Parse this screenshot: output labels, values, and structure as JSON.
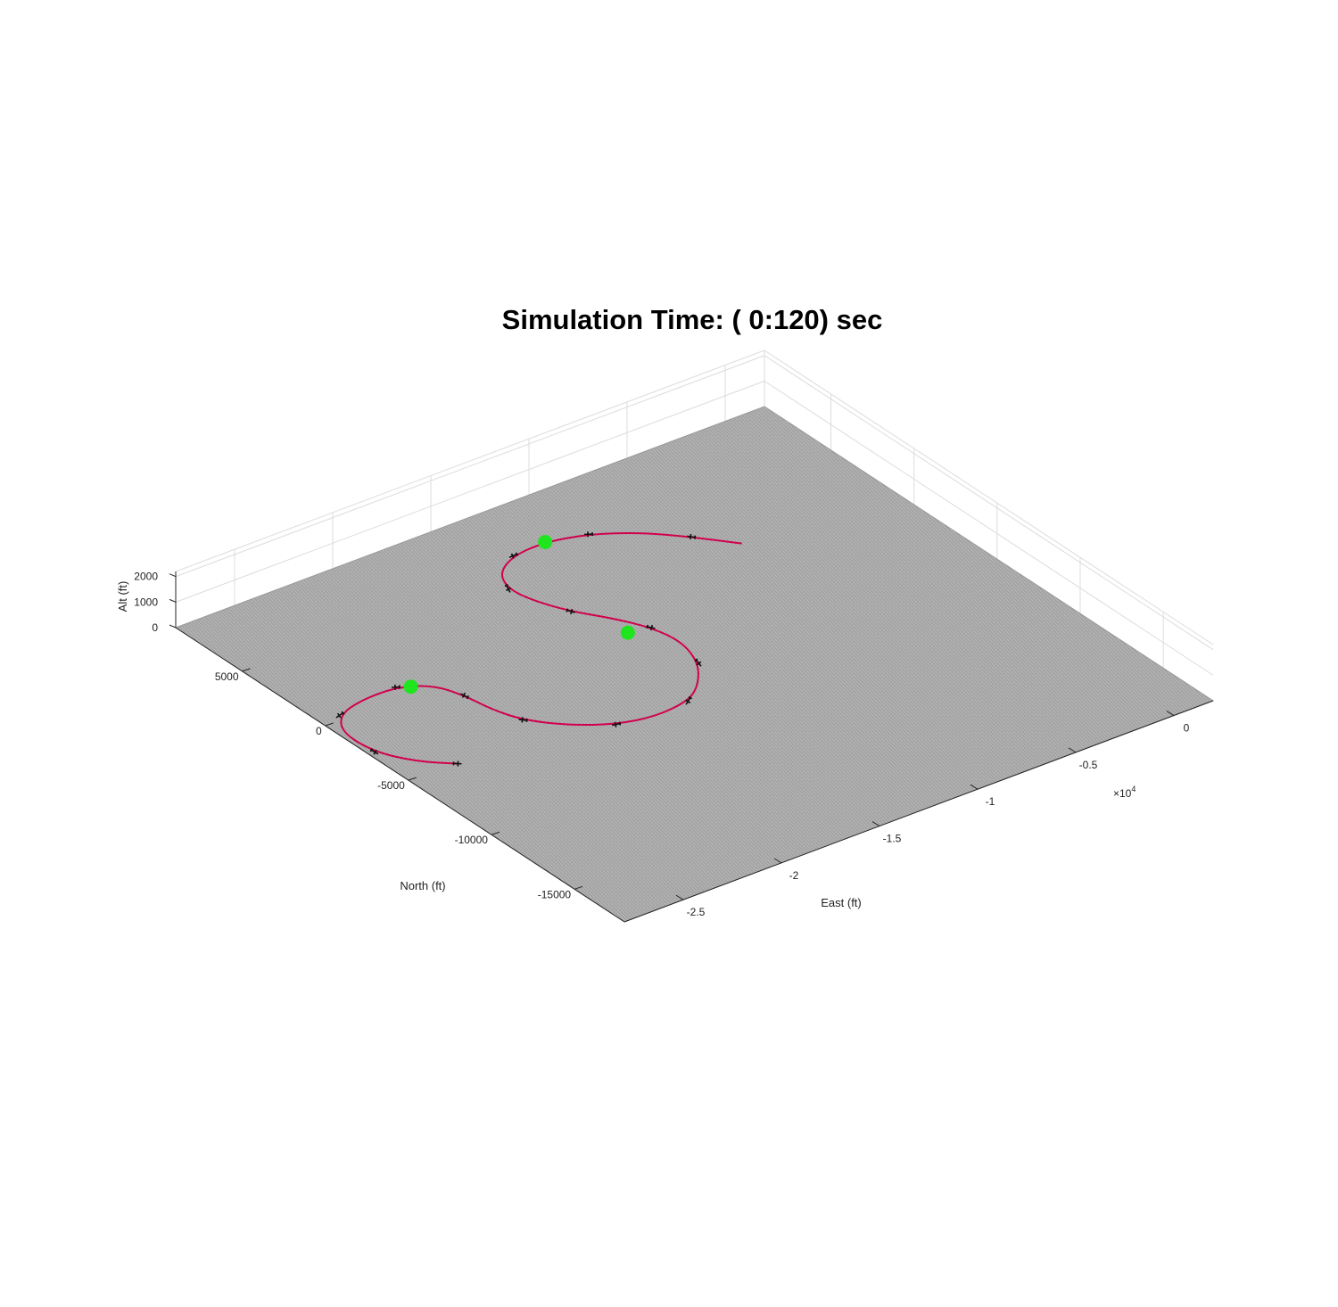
{
  "chart_data": {
    "type": "line",
    "projection": "3d",
    "title": "Simulation Time: ( 0:120) sec",
    "xlabel": "East (ft)",
    "ylabel": "North (ft)",
    "zlabel": "Alt (ft)",
    "x_exponent_label": "×10",
    "x_exponent_power": "4",
    "xlim": [
      -28000,
      2000
    ],
    "ylim": [
      -18000,
      9000
    ],
    "zlim": [
      0,
      2200
    ],
    "x_ticks": [
      {
        "value": 0,
        "label": "0"
      },
      {
        "value": -5000,
        "label": "-0.5"
      },
      {
        "value": -10000,
        "label": "-1"
      },
      {
        "value": -15000,
        "label": "-1.5"
      },
      {
        "value": -20000,
        "label": "-2"
      },
      {
        "value": -25000,
        "label": "-2.5"
      }
    ],
    "y_ticks": [
      {
        "value": 5000,
        "label": "5000"
      },
      {
        "value": 0,
        "label": "0"
      },
      {
        "value": -5000,
        "label": "-5000"
      },
      {
        "value": -10000,
        "label": "-10000"
      },
      {
        "value": -15000,
        "label": "-15000"
      }
    ],
    "z_ticks": [
      {
        "value": 0,
        "label": "0"
      },
      {
        "value": 1000,
        "label": "1000"
      },
      {
        "value": 2000,
        "label": "2000"
      }
    ],
    "grid": true,
    "ground_plane": {
      "color": "#a8a8a8",
      "z": 0
    },
    "series": [
      {
        "color": "#d1004d",
        "points": [
          [
            -5500,
            1500,
            0
          ],
          [
            -6800,
            3000,
            0
          ],
          [
            -8300,
            4400,
            0
          ],
          [
            -10000,
            5400,
            0
          ],
          [
            -11800,
            5900,
            0
          ],
          [
            -13500,
            5800,
            0
          ],
          [
            -14800,
            5100,
            0
          ],
          [
            -15300,
            4000,
            0
          ],
          [
            -15100,
            2800,
            0
          ],
          [
            -14400,
            1300,
            0
          ],
          [
            -13400,
            0,
            0
          ],
          [
            -12600,
            -1400,
            0
          ],
          [
            -12300,
            -2900,
            0
          ],
          [
            -12800,
            -4500,
            0
          ],
          [
            -13900,
            -5800,
            0
          ],
          [
            -15000,
            -6500,
            0
          ],
          [
            -16800,
            -6700,
            0
          ],
          [
            -18500,
            -6300,
            0
          ],
          [
            -20100,
            -5300,
            0
          ],
          [
            -21300,
            -4000,
            0
          ],
          [
            -21800,
            -2700,
            0
          ],
          [
            -22000,
            -1300,
            0
          ],
          [
            -22500,
            0,
            0
          ],
          [
            -23800,
            700,
            0
          ],
          [
            -25600,
            700,
            0
          ],
          [
            -27000,
            300,
            0
          ],
          [
            -27800,
            -800,
            0
          ],
          [
            -27700,
            -2600,
            0
          ],
          [
            -26800,
            -4100,
            0
          ],
          [
            -25600,
            -5100,
            0
          ]
        ],
        "marker_points": [
          [
            -13600,
            -1200,
            0
          ],
          [
            -11800,
            5900,
            0
          ],
          [
            -23300,
            400,
            0
          ]
        ],
        "marker_color": "#1fe51f"
      }
    ]
  }
}
